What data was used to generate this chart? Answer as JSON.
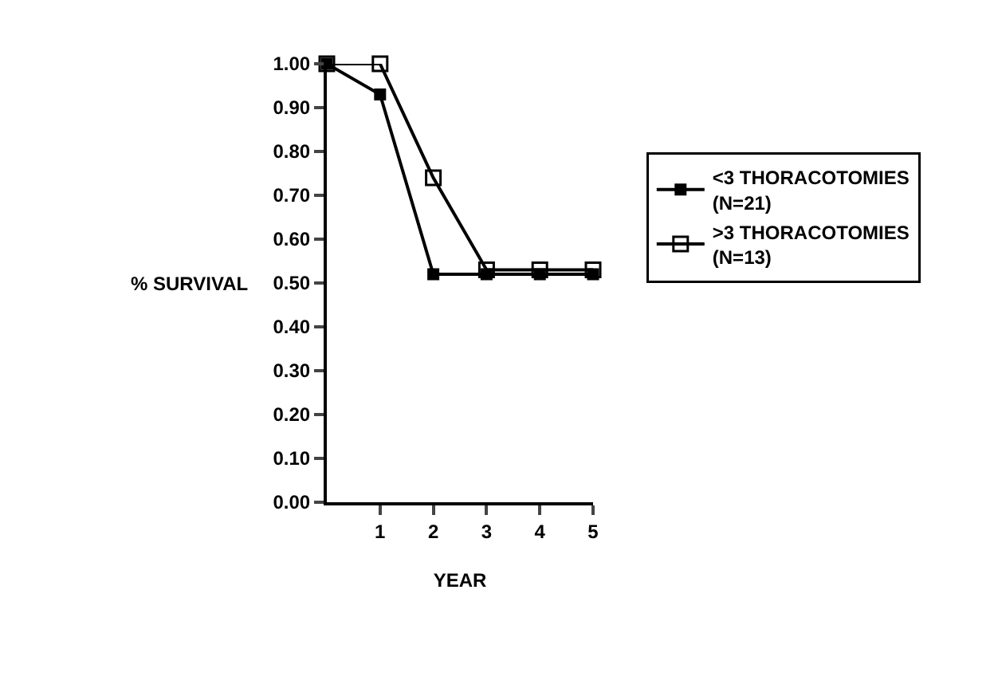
{
  "chart_data": {
    "type": "line",
    "xlabel": "YEAR",
    "ylabel": "% SURVIVAL",
    "x": [
      0,
      1,
      2,
      3,
      4,
      5
    ],
    "series": [
      {
        "name": "<3 THORACOTOMIES\n(N=21)",
        "color": "#000000",
        "values": [
          1.0,
          0.93,
          0.52,
          0.52,
          0.52,
          0.52
        ]
      },
      {
        "name": ">3 THORACOTOMIES\n(N=13)",
        "color": "#000000",
        "values": [
          1.0,
          1.0,
          0.74,
          0.53,
          0.53,
          0.53
        ]
      }
    ],
    "xlim": [
      0,
      5
    ],
    "xticks": [
      1,
      2,
      3,
      4,
      5
    ],
    "ylim": [
      0,
      1
    ],
    "yticks": [
      {
        "value": 0,
        "label": "0.00"
      },
      {
        "value": 0.1,
        "label": "0.10"
      },
      {
        "value": 0.2,
        "label": "0.20"
      },
      {
        "value": 0.3,
        "label": "0.30"
      },
      {
        "value": 0.4,
        "label": "0.40"
      },
      {
        "value": 0.5,
        "label": "0.50"
      },
      {
        "value": 0.6,
        "label": "0.60"
      },
      {
        "value": 0.7,
        "label": "0.70"
      },
      {
        "value": 0.8,
        "label": "0.80"
      },
      {
        "value": 0.9,
        "label": "0.90"
      },
      {
        "value": 1,
        "label": "1.00"
      }
    ],
    "grid": false,
    "legend": "right",
    "marker": "square",
    "line_style": "solid"
  }
}
